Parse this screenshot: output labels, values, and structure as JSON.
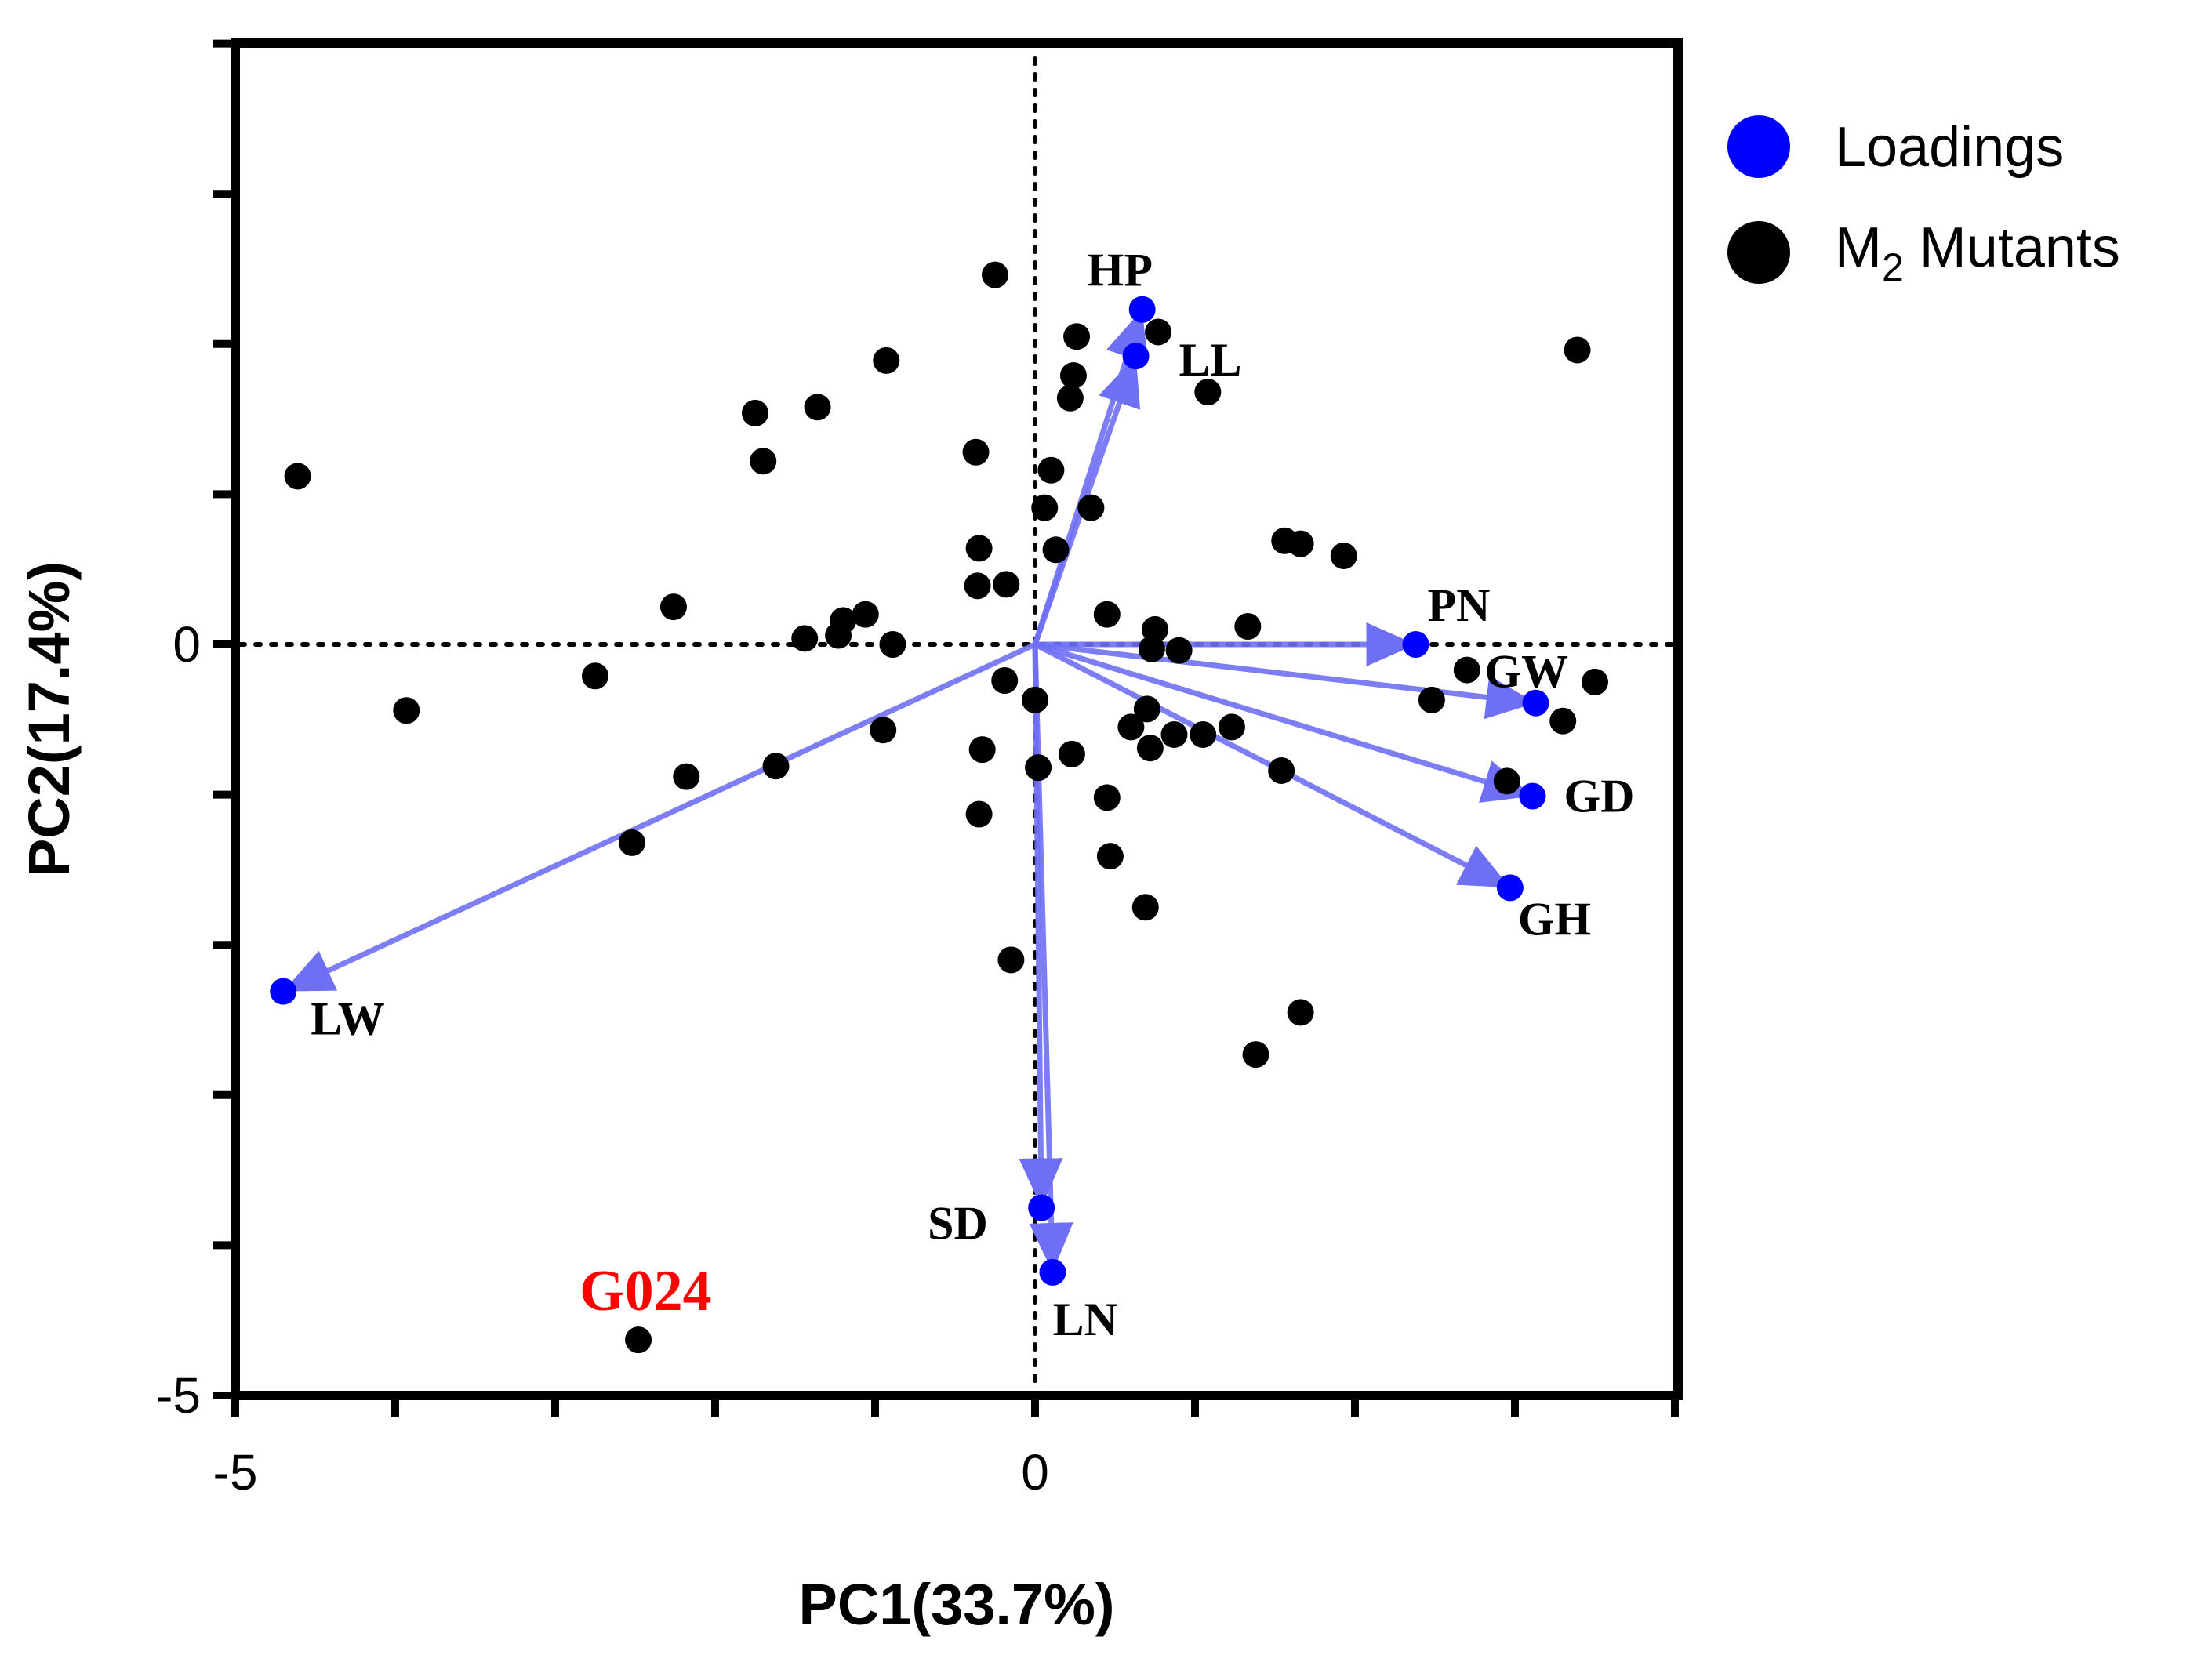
{
  "chart_data": {
    "type": "scatter",
    "subtype": "pca-biplot",
    "xlabel": "PC1(33.7%)",
    "ylabel": "PC2(17.4%)",
    "xlim": [
      -5,
      4
    ],
    "ylim": [
      -5,
      4
    ],
    "x_ticks": [
      -5,
      0
    ],
    "y_ticks": [
      -5,
      0
    ],
    "grid": false,
    "zero_lines": "dotted",
    "legend": {
      "position": "right",
      "items": [
        {
          "label": "Loadings",
          "color": "#0000ff"
        },
        {
          "label": "M",
          "sub": "2",
          "label_rest": " Mutants",
          "color": "#000000"
        }
      ]
    },
    "series": [
      {
        "name": "Loadings",
        "color": "#0000ff",
        "arrow_color": "#6f6ff5",
        "points": [
          {
            "label": "HP",
            "x": 0.67,
            "y": 2.23
          },
          {
            "label": "LL",
            "x": 0.63,
            "y": 1.92
          },
          {
            "label": "PN",
            "x": 2.38,
            "y": 0.0
          },
          {
            "label": "GW",
            "x": 3.13,
            "y": -0.39
          },
          {
            "label": "GD",
            "x": 3.11,
            "y": -1.01
          },
          {
            "label": "GH",
            "x": 2.97,
            "y": -1.62
          },
          {
            "label": "LW",
            "x": -4.7,
            "y": -2.31
          },
          {
            "label": "SD",
            "x": 0.04,
            "y": -3.75
          },
          {
            "label": "LN",
            "x": 0.11,
            "y": -4.18
          }
        ]
      },
      {
        "name": "M2 Mutants",
        "color": "#000000",
        "points": [
          [
            -0.25,
            2.46
          ],
          [
            0.26,
            2.05
          ],
          [
            0.77,
            2.08
          ],
          [
            3.39,
            1.96
          ],
          [
            -0.93,
            1.89
          ],
          [
            0.24,
            1.79
          ],
          [
            0.22,
            1.64
          ],
          [
            1.08,
            1.68
          ],
          [
            -1.36,
            1.58
          ],
          [
            -1.75,
            1.54
          ],
          [
            -1.7,
            1.22
          ],
          [
            -4.61,
            1.12
          ],
          [
            -0.37,
            1.28
          ],
          [
            0.1,
            1.16
          ],
          [
            0.06,
            0.91
          ],
          [
            0.35,
            0.91
          ],
          [
            0.13,
            0.63
          ],
          [
            -0.35,
            0.64
          ],
          [
            1.56,
            0.69
          ],
          [
            1.66,
            0.67
          ],
          [
            1.93,
            0.59
          ],
          [
            -0.36,
            0.39
          ],
          [
            -0.18,
            0.4
          ],
          [
            -2.26,
            0.25
          ],
          [
            -1.06,
            0.2
          ],
          [
            -1.2,
            0.16
          ],
          [
            -1.44,
            0.04
          ],
          [
            -1.23,
            0.06
          ],
          [
            -0.89,
            0.0
          ],
          [
            0.45,
            0.2
          ],
          [
            0.75,
            0.1
          ],
          [
            0.73,
            -0.03
          ],
          [
            0.9,
            -0.04
          ],
          [
            1.33,
            0.12
          ],
          [
            2.7,
            -0.17
          ],
          [
            -2.75,
            -0.21
          ],
          [
            -3.93,
            -0.44
          ],
          [
            -0.19,
            -0.24
          ],
          [
            0.0,
            -0.37
          ],
          [
            2.48,
            -0.37
          ],
          [
            3.5,
            -0.25
          ],
          [
            3.3,
            -0.51
          ],
          [
            0.7,
            -0.43
          ],
          [
            0.6,
            -0.55
          ],
          [
            0.87,
            -0.6
          ],
          [
            1.05,
            -0.6
          ],
          [
            1.23,
            -0.55
          ],
          [
            -0.95,
            -0.57
          ],
          [
            -0.33,
            -0.7
          ],
          [
            0.23,
            -0.73
          ],
          [
            0.72,
            -0.69
          ],
          [
            0.02,
            -0.82
          ],
          [
            -2.18,
            -0.88
          ],
          [
            -1.62,
            -0.81
          ],
          [
            1.54,
            -0.84
          ],
          [
            2.95,
            -0.91
          ],
          [
            0.45,
            -1.02
          ],
          [
            -0.35,
            -1.13
          ],
          [
            -2.52,
            -1.32
          ],
          [
            0.47,
            -1.41
          ],
          [
            0.69,
            -1.75
          ],
          [
            -0.15,
            -2.1
          ],
          [
            1.66,
            -2.45
          ],
          [
            1.38,
            -2.73
          ],
          [
            -2.48,
            -4.63
          ]
        ]
      }
    ],
    "annotations": [
      {
        "text": "G024",
        "color": "#ff0000",
        "x": -2.48,
        "y": -4.63
      }
    ]
  }
}
